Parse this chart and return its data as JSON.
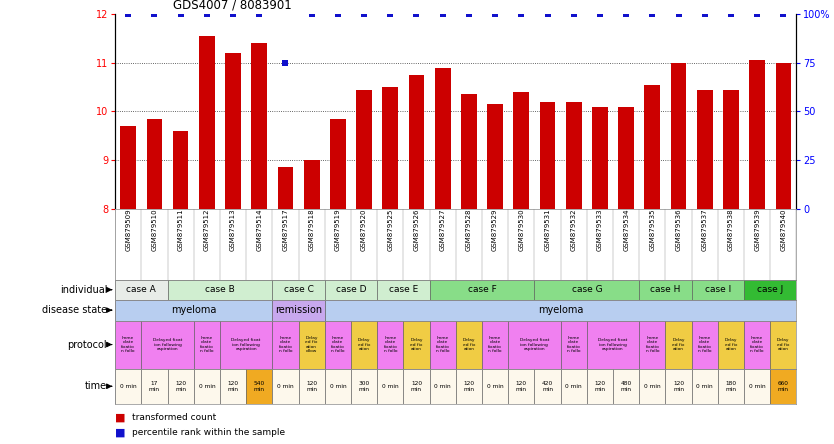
{
  "title": "GDS4007 / 8083901",
  "samples": [
    "GSM879509",
    "GSM879510",
    "GSM879511",
    "GSM879512",
    "GSM879513",
    "GSM879514",
    "GSM879517",
    "GSM879518",
    "GSM879519",
    "GSM879520",
    "GSM879525",
    "GSM879526",
    "GSM879527",
    "GSM879528",
    "GSM879529",
    "GSM879530",
    "GSM879531",
    "GSM879532",
    "GSM879533",
    "GSM879534",
    "GSM879535",
    "GSM879536",
    "GSM879537",
    "GSM879538",
    "GSM879539",
    "GSM879540"
  ],
  "bar_heights": [
    9.7,
    9.85,
    9.6,
    11.55,
    11.2,
    11.4,
    8.85,
    9.0,
    9.85,
    10.45,
    10.5,
    10.75,
    10.9,
    10.35,
    10.15,
    10.4,
    10.2,
    10.2,
    10.1,
    10.1,
    10.55,
    11.0,
    10.45,
    10.45,
    11.05,
    11.0
  ],
  "blue_percentiles": [
    100,
    100,
    100,
    100,
    100,
    100,
    75,
    100,
    100,
    100,
    100,
    100,
    100,
    100,
    100,
    100,
    100,
    100,
    100,
    100,
    100,
    100,
    100,
    100,
    100,
    100
  ],
  "ymin": 8,
  "ymax": 12,
  "bar_color": "#cc0000",
  "blue_color": "#1111cc",
  "individual_cases": [
    {
      "label": "case A",
      "start": 0,
      "end": 2,
      "color": "#e8ece8"
    },
    {
      "label": "case B",
      "start": 2,
      "end": 6,
      "color": "#d0eed0"
    },
    {
      "label": "case C",
      "start": 6,
      "end": 8,
      "color": "#d0eed0"
    },
    {
      "label": "case D",
      "start": 8,
      "end": 10,
      "color": "#d0eed0"
    },
    {
      "label": "case E",
      "start": 10,
      "end": 12,
      "color": "#d0eed0"
    },
    {
      "label": "case F",
      "start": 12,
      "end": 16,
      "color": "#88dd88"
    },
    {
      "label": "case G",
      "start": 16,
      "end": 20,
      "color": "#88dd88"
    },
    {
      "label": "case H",
      "start": 20,
      "end": 22,
      "color": "#88dd88"
    },
    {
      "label": "case I",
      "start": 22,
      "end": 24,
      "color": "#88dd88"
    },
    {
      "label": "case J",
      "start": 24,
      "end": 26,
      "color": "#33bb33"
    }
  ],
  "disease_states": [
    {
      "label": "myeloma",
      "start": 0,
      "end": 6,
      "color": "#b8cef0"
    },
    {
      "label": "remission",
      "start": 6,
      "end": 8,
      "color": "#c8a8ee"
    },
    {
      "label": "myeloma",
      "start": 8,
      "end": 26,
      "color": "#b8cef0"
    }
  ],
  "protocols": [
    {
      "label": "Imme\ndiate\nfixatio\nn follo",
      "start": 0,
      "end": 1,
      "color": "#f080f0"
    },
    {
      "label": "Delayed fixat\nion following\naspiration",
      "start": 1,
      "end": 3,
      "color": "#f080f0"
    },
    {
      "label": "Imme\ndiate\nfixatio\nn follo",
      "start": 3,
      "end": 4,
      "color": "#f080f0"
    },
    {
      "label": "Delayed fixat\nion following\naspiration",
      "start": 4,
      "end": 6,
      "color": "#f080f0"
    },
    {
      "label": "Imme\ndiate\nfixatio\nn follo",
      "start": 6,
      "end": 7,
      "color": "#f080f0"
    },
    {
      "label": "Delay\ned fix\nation\nollow",
      "start": 7,
      "end": 8,
      "color": "#f0cc44"
    },
    {
      "label": "Imme\ndiate\nfixatio\nn follo",
      "start": 8,
      "end": 9,
      "color": "#f080f0"
    },
    {
      "label": "Delay\ned fix\nation",
      "start": 9,
      "end": 10,
      "color": "#f0cc44"
    },
    {
      "label": "Imme\ndiate\nfixatio\nn follo",
      "start": 10,
      "end": 11,
      "color": "#f080f0"
    },
    {
      "label": "Delay\ned fix\nation",
      "start": 11,
      "end": 12,
      "color": "#f0cc44"
    },
    {
      "label": "Imme\ndiate\nfixatio\nn follo",
      "start": 12,
      "end": 13,
      "color": "#f080f0"
    },
    {
      "label": "Delay\ned fix\nation",
      "start": 13,
      "end": 14,
      "color": "#f0cc44"
    },
    {
      "label": "Imme\ndiate\nfixatio\nn follo",
      "start": 14,
      "end": 15,
      "color": "#f080f0"
    },
    {
      "label": "Delayed fixat\nion following\naspiration",
      "start": 15,
      "end": 17,
      "color": "#f080f0"
    },
    {
      "label": "Imme\ndiate\nfixatio\nn follo",
      "start": 17,
      "end": 18,
      "color": "#f080f0"
    },
    {
      "label": "Delayed fixat\nion following\naspiration",
      "start": 18,
      "end": 20,
      "color": "#f080f0"
    },
    {
      "label": "Imme\ndiate\nfixatio\nn follo",
      "start": 20,
      "end": 21,
      "color": "#f080f0"
    },
    {
      "label": "Delay\ned fix\nation",
      "start": 21,
      "end": 22,
      "color": "#f0cc44"
    },
    {
      "label": "Imme\ndiate\nfixatio\nn follo",
      "start": 22,
      "end": 23,
      "color": "#f080f0"
    },
    {
      "label": "Delay\ned fix\nation",
      "start": 23,
      "end": 24,
      "color": "#f0cc44"
    },
    {
      "label": "Imme\ndiate\nfixatio\nn follo",
      "start": 24,
      "end": 25,
      "color": "#f080f0"
    },
    {
      "label": "Delay\ned fix\nation",
      "start": 25,
      "end": 26,
      "color": "#f0cc44"
    }
  ],
  "times": [
    {
      "label": "0 min",
      "start": 0,
      "end": 1,
      "color": "#fdf8ec"
    },
    {
      "label": "17\nmin",
      "start": 1,
      "end": 2,
      "color": "#fdf8ec"
    },
    {
      "label": "120\nmin",
      "start": 2,
      "end": 3,
      "color": "#fdf8ec"
    },
    {
      "label": "0 min",
      "start": 3,
      "end": 4,
      "color": "#fdf8ec"
    },
    {
      "label": "120\nmin",
      "start": 4,
      "end": 5,
      "color": "#fdf8ec"
    },
    {
      "label": "540\nmin",
      "start": 5,
      "end": 6,
      "color": "#f0aa22"
    },
    {
      "label": "0 min",
      "start": 6,
      "end": 7,
      "color": "#fdf8ec"
    },
    {
      "label": "120\nmin",
      "start": 7,
      "end": 8,
      "color": "#fdf8ec"
    },
    {
      "label": "0 min",
      "start": 8,
      "end": 9,
      "color": "#fdf8ec"
    },
    {
      "label": "300\nmin",
      "start": 9,
      "end": 10,
      "color": "#fdf8ec"
    },
    {
      "label": "0 min",
      "start": 10,
      "end": 11,
      "color": "#fdf8ec"
    },
    {
      "label": "120\nmin",
      "start": 11,
      "end": 12,
      "color": "#fdf8ec"
    },
    {
      "label": "0 min",
      "start": 12,
      "end": 13,
      "color": "#fdf8ec"
    },
    {
      "label": "120\nmin",
      "start": 13,
      "end": 14,
      "color": "#fdf8ec"
    },
    {
      "label": "0 min",
      "start": 14,
      "end": 15,
      "color": "#fdf8ec"
    },
    {
      "label": "120\nmin",
      "start": 15,
      "end": 16,
      "color": "#fdf8ec"
    },
    {
      "label": "420\nmin",
      "start": 16,
      "end": 17,
      "color": "#fdf8ec"
    },
    {
      "label": "0 min",
      "start": 17,
      "end": 18,
      "color": "#fdf8ec"
    },
    {
      "label": "120\nmin",
      "start": 18,
      "end": 19,
      "color": "#fdf8ec"
    },
    {
      "label": "480\nmin",
      "start": 19,
      "end": 20,
      "color": "#fdf8ec"
    },
    {
      "label": "0 min",
      "start": 20,
      "end": 21,
      "color": "#fdf8ec"
    },
    {
      "label": "120\nmin",
      "start": 21,
      "end": 22,
      "color": "#fdf8ec"
    },
    {
      "label": "0 min",
      "start": 22,
      "end": 23,
      "color": "#fdf8ec"
    },
    {
      "label": "180\nmin",
      "start": 23,
      "end": 24,
      "color": "#fdf8ec"
    },
    {
      "label": "0 min",
      "start": 24,
      "end": 25,
      "color": "#fdf8ec"
    },
    {
      "label": "660\nmin",
      "start": 25,
      "end": 26,
      "color": "#f0aa22"
    }
  ],
  "legend_red_label": "transformed count",
  "legend_blue_label": "percentile rank within the sample",
  "row_label_names": [
    "individual",
    "disease state",
    "protocol",
    "time"
  ]
}
